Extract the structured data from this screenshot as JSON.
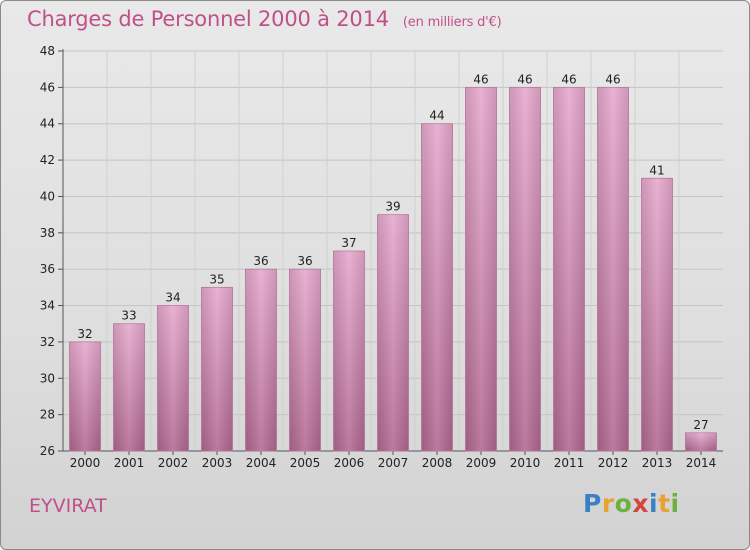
{
  "title": "Charges de Personnel 2000 à 2014",
  "subtitle": "(en milliers d'€)",
  "commune": "EYVIRAT",
  "logo": [
    "P",
    "r",
    "o",
    "x",
    "i",
    "t",
    "i"
  ],
  "colors": {
    "bar_top": "#e6a8cc",
    "bar_bottom": "#b06890",
    "title": "#c0508a"
  },
  "chart_data": {
    "type": "bar",
    "title": "Charges de Personnel 2000 à 2014",
    "subtitle": "(en milliers d'€)",
    "categories": [
      "2000",
      "2001",
      "2002",
      "2003",
      "2004",
      "2005",
      "2006",
      "2007",
      "2008",
      "2009",
      "2010",
      "2011",
      "2012",
      "2013",
      "2014"
    ],
    "values": [
      32,
      33,
      34,
      35,
      36,
      36,
      37,
      39,
      44,
      46,
      46,
      46,
      46,
      41,
      27
    ],
    "ylim": [
      26,
      48
    ],
    "yticks": [
      26,
      28,
      30,
      32,
      34,
      36,
      38,
      40,
      42,
      44,
      46,
      48
    ],
    "grid": true,
    "legend": "none"
  }
}
